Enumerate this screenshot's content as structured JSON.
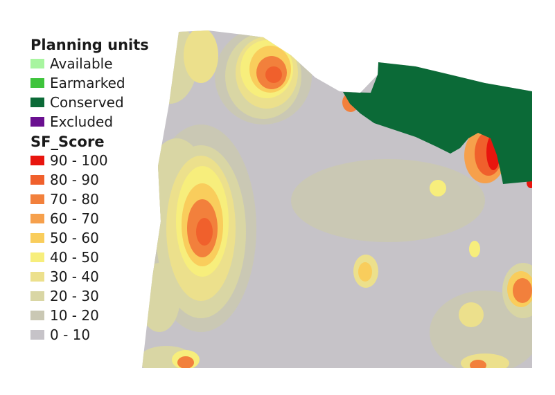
{
  "legend": {
    "planning_units": {
      "title": "Planning units",
      "items": [
        {
          "label": "Available",
          "color": "#a8f5a0"
        },
        {
          "label": "Earmarked",
          "color": "#3ec43c"
        },
        {
          "label": "Conserved",
          "color": "#0b6a37"
        },
        {
          "label": "Excluded",
          "color": "#6a1090"
        }
      ]
    },
    "score": {
      "title": "SF_Score",
      "items": [
        {
          "label": "90 - 100",
          "color": "#e8150e"
        },
        {
          "label": "80 - 90",
          "color": "#f0602c"
        },
        {
          "label": "70 - 80",
          "color": "#f2803c"
        },
        {
          "label": "60 - 70",
          "color": "#f6a04c"
        },
        {
          "label": "50 - 60",
          "color": "#f9cd5c"
        },
        {
          "label": "40 - 50",
          "color": "#f7ee7c"
        },
        {
          "label": "30 - 40",
          "color": "#ece08c"
        },
        {
          "label": "20 - 30",
          "color": "#d9d6a4"
        },
        {
          "label": "10 - 20",
          "color": "#cac8b4"
        },
        {
          "label": "0 - 10",
          "color": "#c6c3c8"
        }
      ]
    }
  }
}
